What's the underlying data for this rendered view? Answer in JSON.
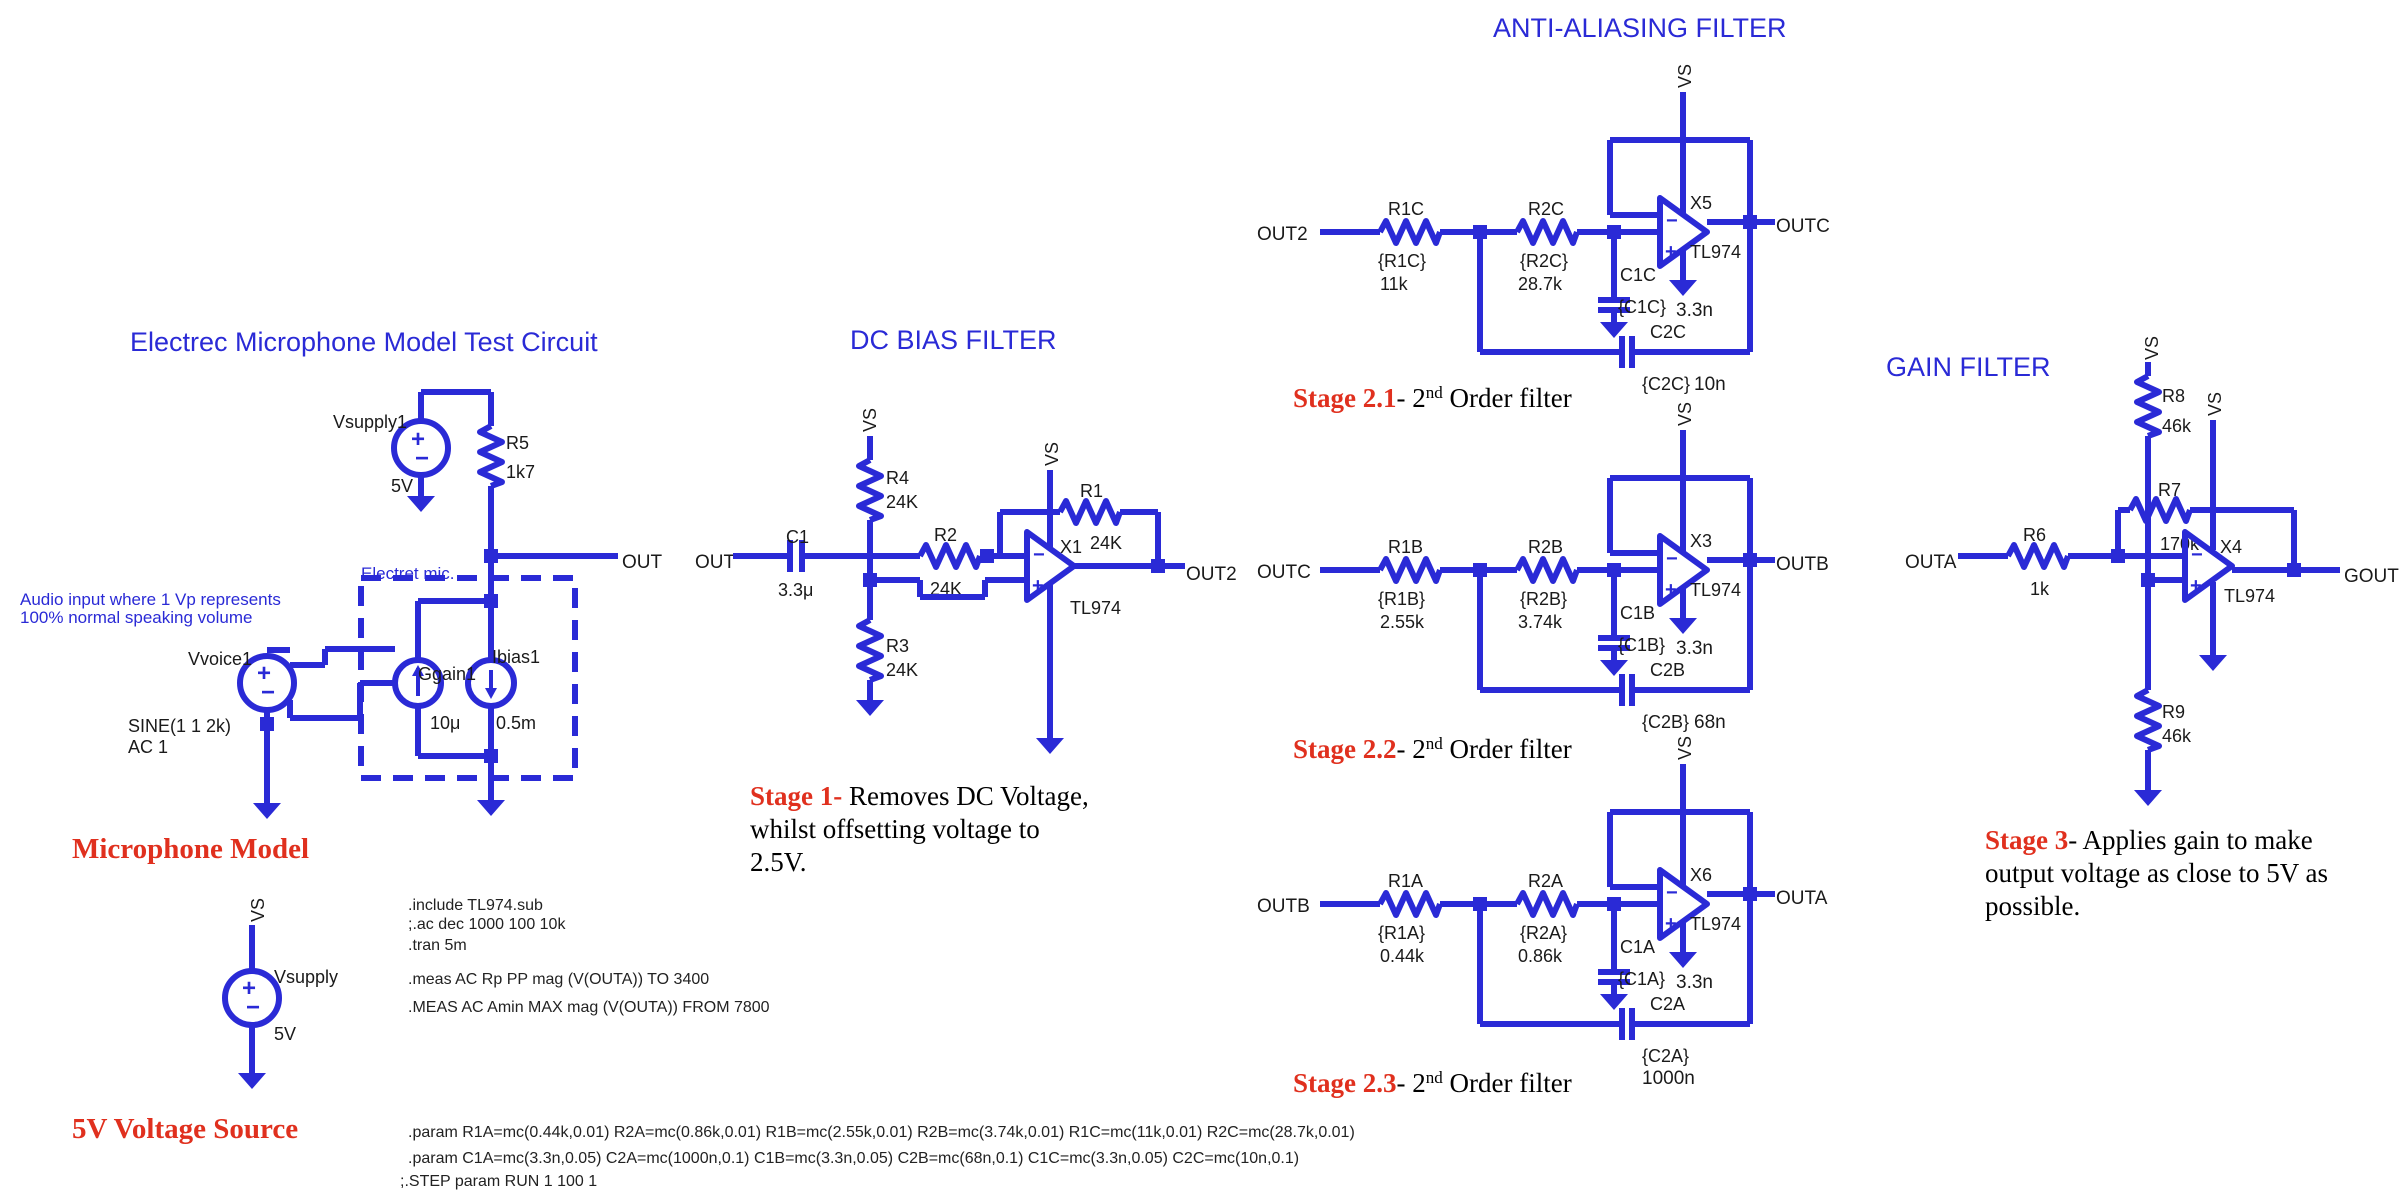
{
  "titles": {
    "mic": "Electrec Microphone Model Test Circuit",
    "dcbias": "DC BIAS FILTER",
    "antialias": "ANTI-ALIASING FILTER",
    "gain": "GAIN FILTER"
  },
  "mic": {
    "vsupply1": "Vsupply1",
    "vsupply1_val": "5V",
    "r5": "R5",
    "r5_val": "1k7",
    "out": "OUT",
    "electret_label": "Electret mic.",
    "audio_note_1": "Audio input where 1 Vp represents",
    "audio_note_2": "100% normal speaking volume",
    "vvoice": "Vvoice1",
    "vvoice_spec": "SINE(1 1 2k)",
    "vvoice_ac": "AC 1",
    "ggain": "Ggain1",
    "ggain_val": "10μ",
    "ibias": "Ibias1",
    "ibias_val": "0.5m",
    "caption": "Microphone Model"
  },
  "source": {
    "vs": "VS",
    "vsupply": "Vsupply",
    "val": "5V",
    "caption": "5V Voltage Source"
  },
  "directives": [
    ".include TL974.sub",
    ";.ac dec 1000 100 10k",
    ".tran 5m",
    ".meas AC Rp PP mag (V(OUTA)) TO 3400",
    ".MEAS AC Amin  MAX mag (V(OUTA)) FROM 7800",
    ".param R1A=mc(0.44k,0.01) R2A=mc(0.86k,0.01) R1B=mc(2.55k,0.01) R2B=mc(3.74k,0.01) R1C=mc(11k,0.01) R2C=mc(28.7k,0.01)",
    ".param C1A=mc(3.3n,0.05) C2A=mc(1000n,0.1) C1B=mc(3.3n,0.05) C2B=mc(68n,0.1) C1C=mc(3.3n,0.05) C2C=mc(10n,0.1)",
    ";.STEP param RUN 1 100 1"
  ],
  "dc": {
    "out_in": "OUT",
    "c1": "C1",
    "c1_val": "3.3μ",
    "vs": "VS",
    "r4": "R4",
    "r4_val": "24K",
    "r3": "R3",
    "r3_val": "24K",
    "r2": "R2",
    "r2_val": "24K",
    "r1": "R1",
    "r1_val": "24K",
    "x1": "X1",
    "opamp": "TL974",
    "vs2": "VS",
    "out2": "OUT2",
    "stage_label": "Stage 1-",
    "stage_desc_1": " Removes DC Voltage,",
    "stage_desc_2": "whilst offsetting voltage to",
    "stage_desc_3": "2.5V."
  },
  "stages": [
    {
      "in": "OUT2",
      "out": "OUTC",
      "x": "X5",
      "r1": "R1C",
      "r1p": "{R1C}",
      "r1v": "11k",
      "r2": "R2C",
      "r2p": "{R2C}",
      "r2v": "28.7k",
      "c1": "C1C",
      "c1p": "{C1C}",
      "c1v": "3.3n",
      "c2": "C2C",
      "c2p": "{C2C}",
      "c2v": "10n",
      "vs": "VS",
      "opamp": "TL974",
      "stage_label": "Stage 2.1",
      "stage_desc": "- 2",
      "sup": "nd",
      "stage_tail": " Order filter"
    },
    {
      "in": "OUTC",
      "out": "OUTB",
      "x": "X3",
      "r1": "R1B",
      "r1p": "{R1B}",
      "r1v": "2.55k",
      "r2": "R2B",
      "r2p": "{R2B}",
      "r2v": "3.74k",
      "c1": "C1B",
      "c1p": "{C1B}",
      "c1v": "3.3n",
      "c2": "C2B",
      "c2p": "{C2B}",
      "c2v": "68n",
      "vs": "VS",
      "opamp": "TL974",
      "stage_label": "Stage 2.2",
      "stage_desc": "- 2",
      "sup": "nd",
      "stage_tail": " Order filter"
    },
    {
      "in": "OUTB",
      "out": "OUTA",
      "x": "X6",
      "r1": "R1A",
      "r1p": "{R1A}",
      "r1v": "0.44k",
      "r2": "R2A",
      "r2p": "{R2A}",
      "r2v": "0.86k",
      "c1": "C1A",
      "c1p": "{C1A}",
      "c1v": "3.3n",
      "c2": "C2A",
      "c2p": "{C2A}",
      "c2v": "1000n",
      "vs": "VS",
      "opamp": "TL974",
      "stage_label": "Stage 2.3",
      "stage_desc": "- 2",
      "sup": "nd",
      "stage_tail": " Order filter"
    }
  ],
  "gain": {
    "in": "OUTA",
    "r6": "R6",
    "r6_val": "1k",
    "r7": "R7",
    "r7_val": "170k",
    "r8": "R8",
    "r8_val": "46k",
    "r9": "R9",
    "r9_val": "46k",
    "vs1": "VS",
    "vs2": "VS",
    "x4": "X4",
    "opamp": "TL974",
    "out": "GOUT",
    "stage_label": "Stage 3",
    "stage_desc_1": "- Applies gain to make",
    "stage_desc_2": "output voltage as close to 5V as",
    "stage_desc_3": "possible."
  },
  "colors": {
    "wire": "#2a2ad6",
    "stage_red": "#e0301e"
  }
}
